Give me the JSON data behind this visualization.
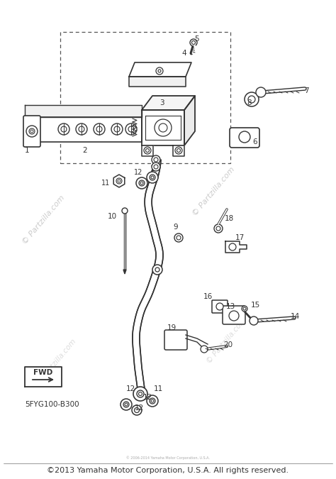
{
  "bg_color": "#ffffff",
  "fig_width": 4.74,
  "fig_height": 6.75,
  "dpi": 100,
  "footer_text": "©2013 Yamaha Motor Corporation, U.S.A. All rights reserved.",
  "footer_small": "© 2006-2014 Yamaha Motor Corporation, U.S.A.",
  "watermark": "© Partzilla.com",
  "part_number": "5FYG100-B300",
  "line_color": "#333333",
  "gray_color": "#888888",
  "light_gray": "#cccccc",
  "dashed_color": "#555555"
}
